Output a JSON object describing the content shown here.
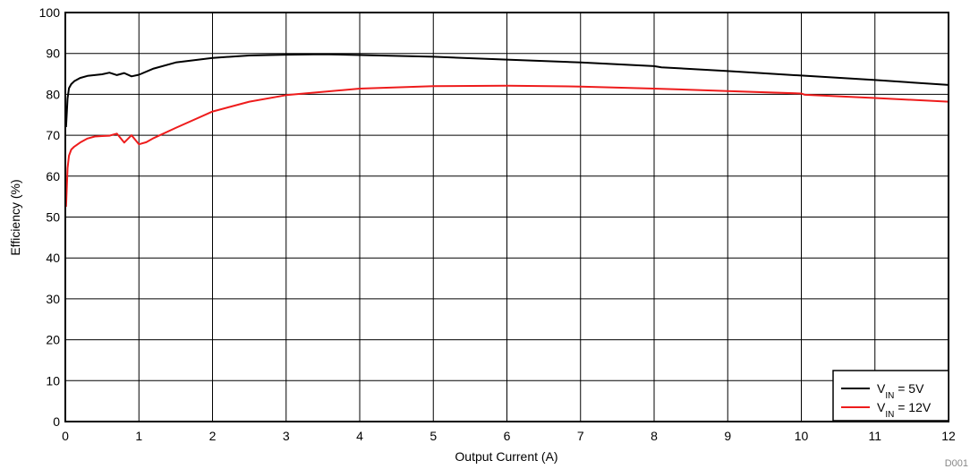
{
  "chart_data": {
    "type": "line",
    "xlabel": "Output Current (A)",
    "ylabel": "Efficiency (%)",
    "xlim": [
      0,
      12
    ],
    "ylim": [
      0,
      100
    ],
    "x_ticks": [
      "0",
      "1",
      "2",
      "3",
      "4",
      "5",
      "6",
      "7",
      "8",
      "9",
      "10",
      "11",
      "12"
    ],
    "y_ticks": [
      "0",
      "10",
      "20",
      "30",
      "40",
      "50",
      "60",
      "70",
      "80",
      "90",
      "100"
    ],
    "grid": true,
    "legend_position": "bottom-right",
    "series": [
      {
        "name": "VIN = 5V",
        "label_main": "V",
        "label_sub": "IN",
        "label_rest": " = 5V",
        "color": "#000000",
        "x": [
          0.01,
          0.03,
          0.05,
          0.08,
          0.12,
          0.2,
          0.3,
          0.4,
          0.5,
          0.6,
          0.7,
          0.8,
          0.9,
          1.0,
          1.2,
          1.5,
          2.0,
          2.5,
          3.0,
          3.5,
          4.0,
          5.0,
          6.0,
          7.0,
          8.0,
          8.1,
          9.0,
          10.0,
          11.0,
          12.0
        ],
        "y": [
          72,
          79,
          81.5,
          82.5,
          83.2,
          84,
          84.5,
          84.7,
          84.9,
          85.3,
          84.7,
          85.2,
          84.4,
          84.8,
          86.3,
          87.8,
          88.9,
          89.5,
          89.7,
          89.8,
          89.6,
          89.2,
          88.5,
          87.8,
          86.9,
          86.6,
          85.7,
          84.6,
          83.5,
          82.3
        ]
      },
      {
        "name": "VIN = 12V",
        "label_main": "V",
        "label_sub": "IN",
        "label_rest": " = 12V",
        "color": "#ee1c1c",
        "x": [
          0.01,
          0.03,
          0.05,
          0.08,
          0.12,
          0.2,
          0.3,
          0.4,
          0.5,
          0.6,
          0.7,
          0.8,
          0.9,
          1.0,
          1.1,
          1.2,
          1.5,
          2.0,
          2.5,
          3.0,
          4.0,
          5.0,
          6.0,
          7.0,
          8.0,
          9.0,
          10.0,
          10.05,
          11.0,
          12.0
        ],
        "y": [
          52.5,
          62,
          65,
          66.5,
          67.2,
          68.2,
          69.2,
          69.7,
          69.8,
          69.9,
          70.4,
          68.2,
          70,
          67.8,
          68.3,
          69.3,
          71.8,
          75.8,
          78.2,
          79.8,
          81.4,
          82,
          82.1,
          81.9,
          81.4,
          80.8,
          80.2,
          79.9,
          79.1,
          78.2
        ]
      }
    ]
  },
  "figure_id": "D001"
}
